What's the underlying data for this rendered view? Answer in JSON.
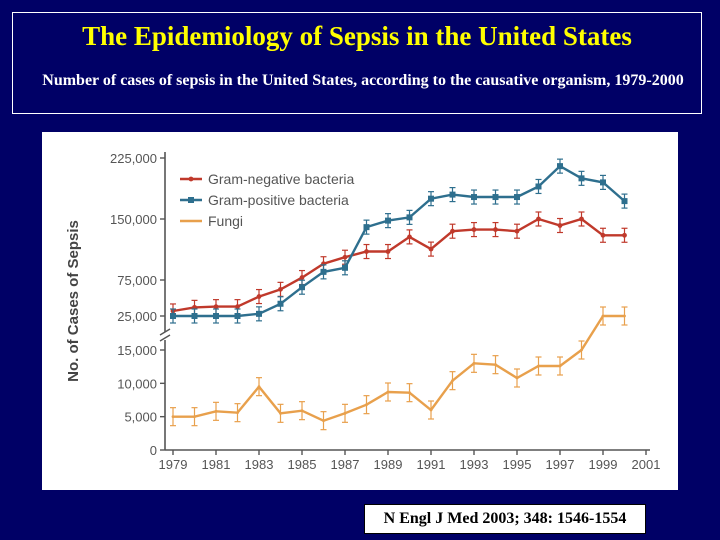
{
  "slide": {
    "title": "The Epidemiology of Sepsis in the United States",
    "subtitle": "Number of cases of sepsis in the United States, according to the causative organism, 1979-2000",
    "citation": "N Engl J Med 2003; 348: 1546-1554",
    "background_color": "#000066",
    "title_color": "#ffff00"
  },
  "chart_data": {
    "type": "line",
    "title": "",
    "xlabel": "",
    "ylabel": "No. of Cases of Sepsis",
    "x": [
      1979,
      1980,
      1981,
      1982,
      1983,
      1984,
      1985,
      1986,
      1987,
      1988,
      1989,
      1990,
      1991,
      1992,
      1993,
      1994,
      1995,
      1996,
      1997,
      1998,
      1999,
      2000
    ],
    "x_ticks": [
      "1979",
      "1981",
      "1983",
      "1985",
      "1987",
      "1989",
      "1991",
      "1993",
      "1995",
      "1997",
      "1999",
      "2001"
    ],
    "xlim": [
      1979,
      2001
    ],
    "y_axis_break": "broken axis between 15,000 and 25,000",
    "y_ticks_lower": [
      "0",
      "5,000",
      "10,000",
      "15,000"
    ],
    "y_ticks_upper": [
      "25,000",
      "75,000",
      "150,000",
      "225,000"
    ],
    "series": [
      {
        "name": "Gram-negative bacteria",
        "color": "#c0392b",
        "values": [
          32000,
          37000,
          38000,
          38000,
          52000,
          62000,
          78000,
          95000,
          103000,
          110000,
          110000,
          128000,
          113000,
          135000,
          137000,
          137000,
          135000,
          150000,
          142000,
          150000,
          130000,
          130000
        ]
      },
      {
        "name": "Gram-positive bacteria",
        "color": "#2e6f8e",
        "values": [
          25000,
          20000,
          22000,
          25000,
          28000,
          42000,
          65000,
          85000,
          90000,
          140000,
          148000,
          152000,
          175000,
          180000,
          177000,
          177000,
          177000,
          190000,
          215000,
          200000,
          195000,
          172000
        ]
      },
      {
        "name": "Fungi",
        "color": "#e8a04c",
        "values": [
          5000,
          5000,
          5800,
          5600,
          9500,
          5500,
          5900,
          4400,
          5500,
          6800,
          8700,
          8600,
          6000,
          10400,
          13000,
          12800,
          10800,
          12600,
          12600,
          15000,
          19000,
          19000
        ]
      }
    ]
  }
}
